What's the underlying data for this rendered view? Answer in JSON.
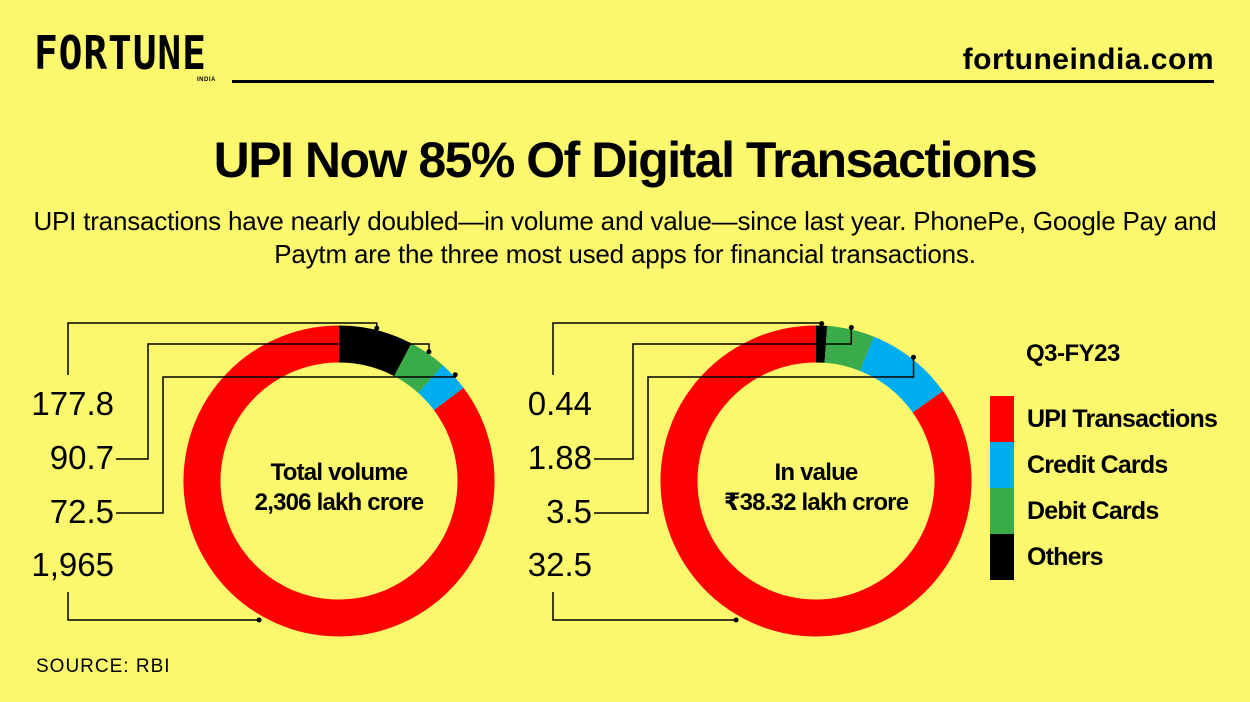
{
  "header": {
    "brand": "FORTUNE",
    "brand_sub": "INDIA",
    "url": "fortuneindia.com"
  },
  "source": "SOURCE: RBI",
  "colors": {
    "background": "#fbf86e",
    "upi": "#ff0000",
    "credit": "#00aeef",
    "debit": "#3aab4a",
    "others": "#000000"
  },
  "chart_data": {
    "title": "UPI Now 85% Of Digital Transactions",
    "subtitle": "UPI transactions have nearly doubled—in volume and value—since last year. PhonePe, Google Pay and Paytm are the three most used apps for financial transactions.",
    "type": "pie",
    "legend": {
      "title": "Q3-FY23",
      "placement": "right",
      "items": [
        "UPI Transactions",
        "Credit Cards",
        "Debit Cards",
        "Others"
      ]
    },
    "charts": [
      {
        "center_label": [
          "Total volume",
          "2,306 lakh crore"
        ],
        "slices": [
          {
            "name": "UPI Transactions",
            "value": 1965,
            "label": "1,965"
          },
          {
            "name": "Credit Cards",
            "value": 72.5,
            "label": "72.5"
          },
          {
            "name": "Debit Cards",
            "value": 90.7,
            "label": "90.7"
          },
          {
            "name": "Others",
            "value": 177.8,
            "label": "177.8"
          }
        ]
      },
      {
        "center_label": [
          "In value",
          "₹38.32 lakh crore"
        ],
        "slices": [
          {
            "name": "UPI Transactions",
            "value": 32.5,
            "label": "32.5"
          },
          {
            "name": "Credit Cards",
            "value": 3.5,
            "label": "3.5"
          },
          {
            "name": "Debit Cards",
            "value": 1.88,
            "label": "1.88"
          },
          {
            "name": "Others",
            "value": 0.44,
            "label": "0.44"
          }
        ]
      }
    ]
  }
}
